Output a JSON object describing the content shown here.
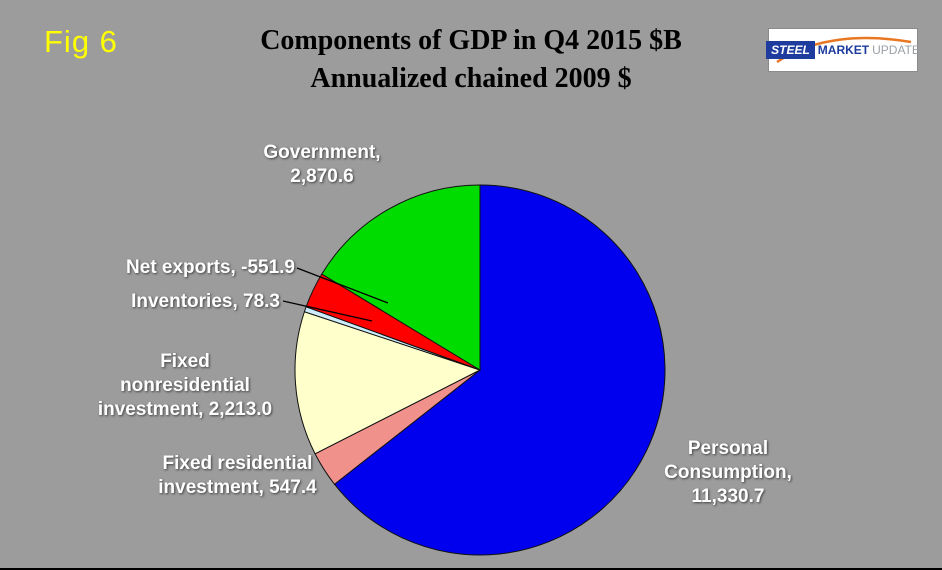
{
  "fig_label": "Fig 6",
  "title": {
    "line1": "Components of GDP in Q4 2015 $B",
    "line2": "Annualized chained 2009 $"
  },
  "logo": {
    "steel": "STEEL",
    "market": "MARKET",
    "update": "UPDATE",
    "accent_orange": "#e87722",
    "accent_blue": "#1d3c9e"
  },
  "chart_data": {
    "type": "pie",
    "title": "Components of GDP in Q4 2015 $B — Annualized chained 2009 $",
    "legend": "none",
    "background": "#9c9c9c",
    "start_angle": "12 o'clock, clockwise",
    "slices": [
      {
        "key": "personal-consumption",
        "label": "Personal Consumption",
        "value": 11330.7,
        "color": "#0000ef"
      },
      {
        "key": "fixed-residential-investment",
        "label": "Fixed residential investment",
        "value": 547.4,
        "color": "#f1918c"
      },
      {
        "key": "fixed-nonresidential-investment",
        "label": "Fixed nonresidential investment",
        "value": 2213.0,
        "color": "#ffffcc"
      },
      {
        "key": "inventories",
        "label": "Inventories",
        "value": 78.3,
        "color": "#cdebfa"
      },
      {
        "key": "net-exports",
        "label": "Net exports",
        "value": -551.9,
        "color": "#fe0000"
      },
      {
        "key": "government",
        "label": "Government",
        "value": 2870.6,
        "color": "#00dc00"
      }
    ]
  },
  "labels": {
    "government": {
      "lines": [
        "Government,",
        "2,870.6"
      ]
    },
    "net_exports": {
      "lines": [
        "Net exports, -551.9"
      ]
    },
    "inventories": {
      "lines": [
        "Inventories, 78.3"
      ]
    },
    "fixed_nonresidential": {
      "lines": [
        "Fixed",
        "nonresidential",
        "investment, 2,213.0"
      ]
    },
    "fixed_residential": {
      "lines": [
        "Fixed residential",
        "investment, 547.4"
      ]
    },
    "personal_consumption": {
      "lines": [
        "Personal",
        "Consumption,",
        "11,330.7"
      ]
    }
  }
}
